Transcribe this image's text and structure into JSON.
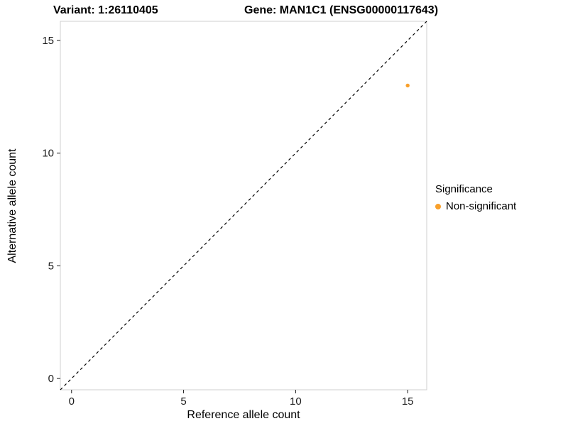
{
  "chart_data": {
    "type": "scatter",
    "title_left": "Variant: 1:26110405",
    "title_right": "Gene: MAN1C1 (ENSG00000117643)",
    "xlabel": "Reference allele count",
    "ylabel": "Alternative allele count",
    "xlim": [
      -0.5,
      15.85
    ],
    "ylim": [
      -0.5,
      15.85
    ],
    "xticks": [
      0,
      5,
      10,
      15
    ],
    "yticks": [
      0,
      5,
      10,
      15
    ],
    "grid": false,
    "panel_border_color": "#cfcfcf",
    "identity_line": {
      "style": "dashed",
      "color": "#000000"
    },
    "series": [
      {
        "name": "Non-significant",
        "color": "#F9A02B",
        "points": [
          {
            "x": 15,
            "y": 13
          }
        ]
      }
    ],
    "legend": {
      "title": "Significance",
      "position": "right",
      "entries": [
        {
          "label": "Non-significant",
          "color": "#F9A02B"
        }
      ]
    }
  }
}
